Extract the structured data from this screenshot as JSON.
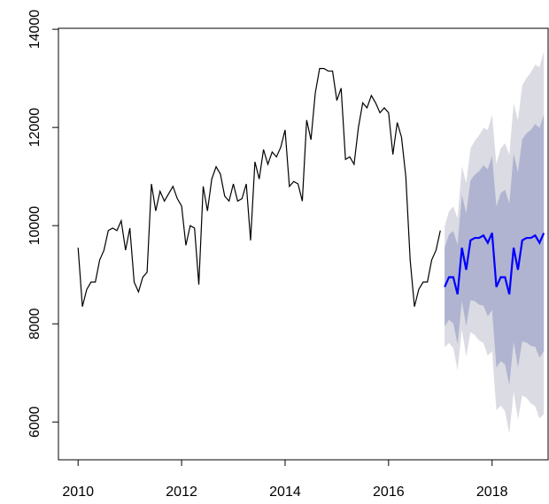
{
  "chart_data": {
    "type": "line",
    "xlim": [
      2009.62,
      2019.1
    ],
    "ylim": [
      5230,
      14020
    ],
    "xticks": [
      2010,
      2012,
      2014,
      2016,
      2018
    ],
    "yticks": [
      6000,
      8000,
      10000,
      12000,
      14000
    ],
    "band_colors": [
      "#b0b4d0",
      "#dbdbe3"
    ],
    "series": [
      {
        "color": "#000000",
        "x": [
          2010,
          2010.083,
          2010.167,
          2010.25,
          2010.333,
          2010.417,
          2010.5,
          2010.583,
          2010.667,
          2010.75,
          2010.833,
          2010.917,
          2011,
          2011.083,
          2011.167,
          2011.25,
          2011.333,
          2011.417,
          2011.5,
          2011.583,
          2011.667,
          2011.75,
          2011.833,
          2011.917,
          2012,
          2012.083,
          2012.167,
          2012.25,
          2012.333,
          2012.417,
          2012.5,
          2012.583,
          2012.667,
          2012.75,
          2012.833,
          2012.917,
          2013,
          2013.083,
          2013.167,
          2013.25,
          2013.333,
          2013.417,
          2013.5,
          2013.583,
          2013.667,
          2013.75,
          2013.833,
          2013.917,
          2014,
          2014.083,
          2014.167,
          2014.25,
          2014.333,
          2014.417,
          2014.5,
          2014.583,
          2014.667,
          2014.75,
          2014.833,
          2014.917,
          2015,
          2015.083,
          2015.167,
          2015.25,
          2015.333,
          2015.417,
          2015.5,
          2015.583,
          2015.667,
          2015.75,
          2015.833,
          2015.917,
          2016,
          2016.083,
          2016.167,
          2016.25,
          2016.333,
          2016.417,
          2016.5,
          2016.583,
          2016.667,
          2016.75,
          2016.833,
          2016.917,
          2017
        ],
        "values": [
          9550,
          8350,
          8700,
          8850,
          8850,
          9300,
          9500,
          9900,
          9950,
          9900,
          10100,
          9500,
          9950,
          8850,
          8650,
          8950,
          9050,
          10850,
          10300,
          10700,
          10500,
          10650,
          10800,
          10550,
          10400,
          9600,
          10000,
          9950,
          8800,
          10800,
          10300,
          10950,
          11200,
          11050,
          10600,
          10500,
          10850,
          10500,
          10550,
          10850,
          9700,
          11300,
          10950,
          11550,
          11250,
          11500,
          11400,
          11600,
          11950,
          10800,
          10900,
          10850,
          10500,
          12150,
          11750,
          12700,
          13200,
          13200,
          13150,
          13150,
          12550,
          12800,
          11350,
          11400,
          11250,
          12000,
          12500,
          12400,
          12650,
          12500,
          12300,
          12400,
          12300,
          11450,
          12100,
          11800,
          11000,
          9300,
          8350,
          8700,
          8850,
          8850,
          9300,
          9500,
          9900
        ]
      },
      {
        "color": "#0000ff",
        "x": [
          2017.083,
          2017.167,
          2017.25,
          2017.333,
          2017.417,
          2017.5,
          2017.583,
          2017.667,
          2017.75,
          2017.833,
          2017.917,
          2018,
          2018.083,
          2018.167,
          2018.25,
          2018.333,
          2018.417,
          2018.5,
          2018.583,
          2018.667,
          2018.75,
          2018.833,
          2018.917,
          2019
        ],
        "values": [
          8750,
          8950,
          8950,
          8600,
          9550,
          9100,
          9700,
          9750,
          9750,
          9800,
          9650,
          9850,
          8750,
          8950,
          8950,
          8600,
          9550,
          9100,
          9700,
          9750,
          9750,
          9800,
          9650,
          9850
        ],
        "lower80": [
          7950,
          8080,
          8010,
          7590,
          8470,
          7950,
          8480,
          8460,
          8390,
          8370,
          8150,
          8280,
          7110,
          7240,
          7170,
          6750,
          7630,
          7110,
          7640,
          7620,
          7550,
          7530,
          7310,
          7440
        ],
        "upper80": [
          9550,
          9820,
          9890,
          9610,
          10630,
          10250,
          10920,
          11040,
          11110,
          11230,
          11150,
          11420,
          10390,
          10660,
          10730,
          10450,
          11470,
          11090,
          11760,
          11880,
          11950,
          12070,
          11990,
          12260
        ],
        "lower95": [
          7520,
          7610,
          7510,
          7050,
          7890,
          7330,
          7830,
          7770,
          7660,
          7610,
          7350,
          7440,
          6240,
          6330,
          6220,
          5760,
          6610,
          6050,
          6540,
          6490,
          6380,
          6320,
          6070,
          6160
        ],
        "upper95": [
          9980,
          10290,
          10390,
          10150,
          11210,
          10870,
          11570,
          11730,
          11840,
          11990,
          11950,
          12260,
          11260,
          11570,
          11680,
          11440,
          12490,
          12150,
          12860,
          13010,
          13120,
          13280,
          13230,
          13540
        ]
      }
    ]
  }
}
